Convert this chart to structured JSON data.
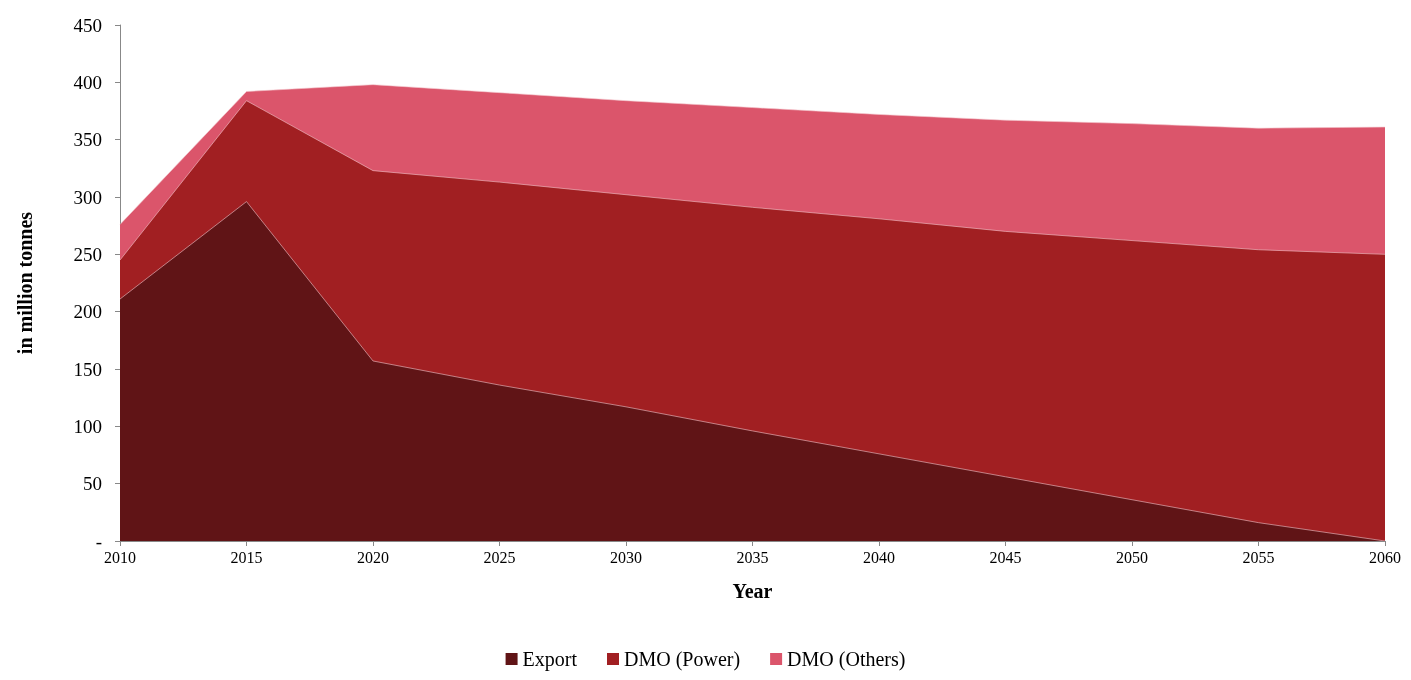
{
  "chart_data": {
    "type": "area",
    "stacked": true,
    "xlabel": "Year",
    "ylabel": "in million tonnes",
    "x": [
      2010,
      2015,
      2020,
      2025,
      2030,
      2035,
      2040,
      2045,
      2050,
      2055,
      2060
    ],
    "series": [
      {
        "name": "Export",
        "color": "#601416",
        "values": [
          211,
          296,
          157,
          136,
          117,
          96,
          76,
          56,
          36,
          16,
          0
        ]
      },
      {
        "name": "DMO (Power)",
        "color": "#a11f22",
        "values": [
          34,
          88,
          166,
          177,
          185,
          195,
          205,
          214,
          226,
          238,
          250
        ]
      },
      {
        "name": "DMO (Others)",
        "color": "#db556b",
        "values": [
          31,
          8,
          75,
          78,
          82,
          87,
          91,
          97,
          102,
          106,
          111
        ]
      }
    ],
    "xlim": [
      2010,
      2060
    ],
    "xticks": [
      2010,
      2015,
      2020,
      2025,
      2030,
      2035,
      2040,
      2045,
      2050,
      2055,
      2060
    ],
    "ylim": [
      0,
      450
    ],
    "yticks": [
      {
        "value": 0,
        "label": "-"
      },
      50,
      100,
      150,
      200,
      250,
      300,
      350,
      400,
      450
    ],
    "grid": false,
    "legend": "bottom"
  }
}
